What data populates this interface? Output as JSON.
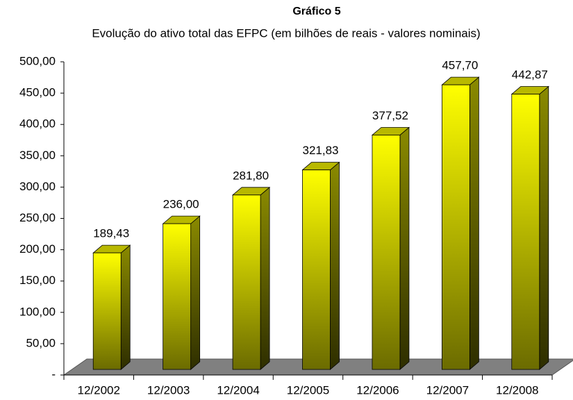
{
  "chart_data": {
    "type": "bar3d",
    "title": "Gráfico 5",
    "subtitle": "Evolução do ativo total das EFPC (em bilhões de reais - valores nominais)",
    "categories": [
      "12/2002",
      "12/2003",
      "12/2004",
      "12/2005",
      "12/2006",
      "12/2007",
      "12/2008"
    ],
    "values": [
      189.43,
      236.0,
      281.8,
      321.83,
      377.52,
      457.7,
      442.87
    ],
    "value_labels": [
      "189,43",
      "236,00",
      "281,80",
      "321,83",
      "377,52",
      "457,70",
      "442,87"
    ],
    "color": "#ffff00",
    "ylim": [
      0,
      500
    ],
    "yticks": [
      {
        "value": 0,
        "label": "-"
      },
      {
        "value": 50,
        "label": "50,00"
      },
      {
        "value": 100,
        "label": "100,00"
      },
      {
        "value": 150,
        "label": "150,00"
      },
      {
        "value": 200,
        "label": "200,00"
      },
      {
        "value": 250,
        "label": "250,00"
      },
      {
        "value": 300,
        "label": "300,00"
      },
      {
        "value": 350,
        "label": "350,00"
      },
      {
        "value": 400,
        "label": "400,00"
      },
      {
        "value": 450,
        "label": "450,00"
      },
      {
        "value": 500,
        "label": "500,00"
      }
    ]
  }
}
